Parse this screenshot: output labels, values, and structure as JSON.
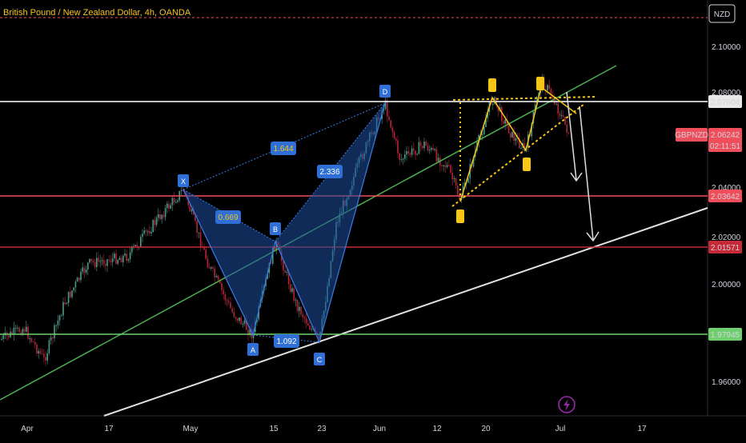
{
  "header": {
    "symbol_title": "British Pound / New Zealand Dollar, 4h, OANDA"
  },
  "currency": {
    "label": "NZD"
  },
  "price_axis": {
    "ticks": [
      "2.10000",
      "2.08000",
      "2.04000",
      "2.02000",
      "2.00000",
      "1.96000"
    ]
  },
  "time_axis": {
    "ticks": [
      "Apr",
      "17",
      "May",
      "15",
      "23",
      "Jun",
      "12",
      "20",
      "Jul",
      "17"
    ]
  },
  "levels": {
    "white": {
      "value": "2.07604",
      "color": "#ffffff"
    },
    "red1": {
      "value": "2.03642",
      "color": "#ef4e5a"
    },
    "red2": {
      "value": "2.01571",
      "color": "#d0303d"
    },
    "green": {
      "value": "1.97945",
      "color": "#6fcf6f"
    }
  },
  "ticker": {
    "symbol": "GBPNZD",
    "price": "2.06242",
    "countdown": "02:11:51",
    "color": "#ef4e5a"
  },
  "harmonic": {
    "points": [
      "X",
      "A",
      "B",
      "C",
      "D"
    ],
    "ratios": {
      "xd": "1.644",
      "xb": "0.669",
      "bd": "2.336",
      "ac": "1.092"
    },
    "color": "#2f6fd6"
  },
  "yellow_pattern": {
    "color": "#f5c518"
  },
  "colors": {
    "up": "#4a9c8a",
    "down": "#b3263a",
    "trend_green": "#4caf50",
    "trend_white": "#e0e0e0"
  },
  "icons": {
    "flash": "lightning-icon"
  }
}
